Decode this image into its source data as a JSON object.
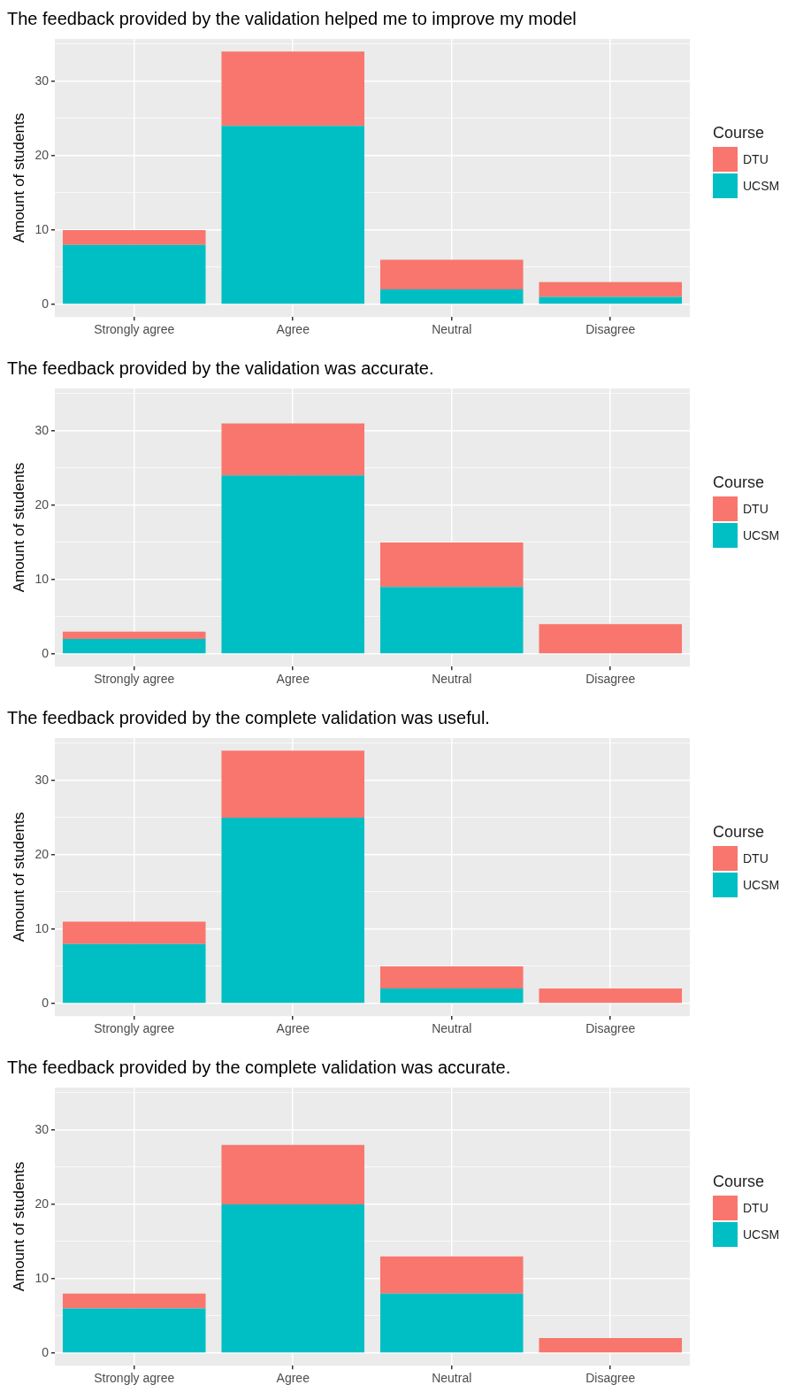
{
  "chart_data": [
    {
      "type": "bar",
      "title": "The feedback provided by the validation helped me to improve my model",
      "ylabel": "Amount of students",
      "legend_title": "Course",
      "categories": [
        "Strongly agree",
        "Agree",
        "Neutral",
        "Disagree"
      ],
      "stacked": true,
      "series": [
        {
          "name": "UCSM",
          "color": "#00bfc4",
          "values": [
            8,
            24,
            2,
            1
          ]
        },
        {
          "name": "DTU",
          "color": "#f8766d",
          "values": [
            2,
            10,
            4,
            2
          ]
        }
      ],
      "ylim": [
        -1.7,
        35.7
      ],
      "yticks": [
        0,
        {
          "value": 5,
          "label": null
        },
        10,
        {
          "value": 15,
          "label": null
        },
        20,
        {
          "value": 25,
          "label": null
        },
        30,
        {
          "value": 35,
          "label": null
        }
      ],
      "grid": true,
      "legend": "right"
    },
    {
      "type": "bar",
      "title": "The feedback provided by the validation was accurate.",
      "ylabel": "Amount of students",
      "legend_title": "Course",
      "categories": [
        "Strongly agree",
        "Agree",
        "Neutral",
        "Disagree"
      ],
      "stacked": true,
      "series": [
        {
          "name": "UCSM",
          "color": "#00bfc4",
          "values": [
            2,
            24,
            9,
            0
          ]
        },
        {
          "name": "DTU",
          "color": "#f8766d",
          "values": [
            1,
            7,
            6,
            4
          ]
        }
      ],
      "ylim": [
        -1.7,
        35.7
      ],
      "yticks": [
        0,
        {
          "value": 5,
          "label": null
        },
        10,
        {
          "value": 15,
          "label": null
        },
        20,
        {
          "value": 25,
          "label": null
        },
        30,
        {
          "value": 35,
          "label": null
        }
      ],
      "grid": true,
      "legend": "right"
    },
    {
      "type": "bar",
      "title": "The feedback provided by the complete validation was useful.",
      "ylabel": "Amount of students",
      "legend_title": "Course",
      "categories": [
        "Strongly agree",
        "Agree",
        "Neutral",
        "Disagree"
      ],
      "stacked": true,
      "series": [
        {
          "name": "UCSM",
          "color": "#00bfc4",
          "values": [
            8,
            25,
            2,
            0
          ]
        },
        {
          "name": "DTU",
          "color": "#f8766d",
          "values": [
            3,
            9,
            3,
            2
          ]
        }
      ],
      "ylim": [
        -1.7,
        35.7
      ],
      "yticks": [
        0,
        {
          "value": 5,
          "label": null
        },
        10,
        {
          "value": 15,
          "label": null
        },
        20,
        {
          "value": 25,
          "label": null
        },
        30,
        {
          "value": 35,
          "label": null
        }
      ],
      "grid": true,
      "legend": "right"
    },
    {
      "type": "bar",
      "title": "The feedback provided by the complete validation was accurate.",
      "ylabel": "Amount of students",
      "legend_title": "Course",
      "categories": [
        "Strongly agree",
        "Agree",
        "Neutral",
        "Disagree"
      ],
      "stacked": true,
      "series": [
        {
          "name": "UCSM",
          "color": "#00bfc4",
          "values": [
            6,
            20,
            8,
            0
          ]
        },
        {
          "name": "DTU",
          "color": "#f8766d",
          "values": [
            2,
            8,
            5,
            2
          ]
        }
      ],
      "ylim": [
        -1.7,
        35.7
      ],
      "yticks": [
        0,
        {
          "value": 5,
          "label": null
        },
        10,
        {
          "value": 15,
          "label": null
        },
        20,
        {
          "value": 25,
          "label": null
        },
        30,
        {
          "value": 35,
          "label": null
        }
      ],
      "grid": true,
      "legend": "right"
    }
  ]
}
